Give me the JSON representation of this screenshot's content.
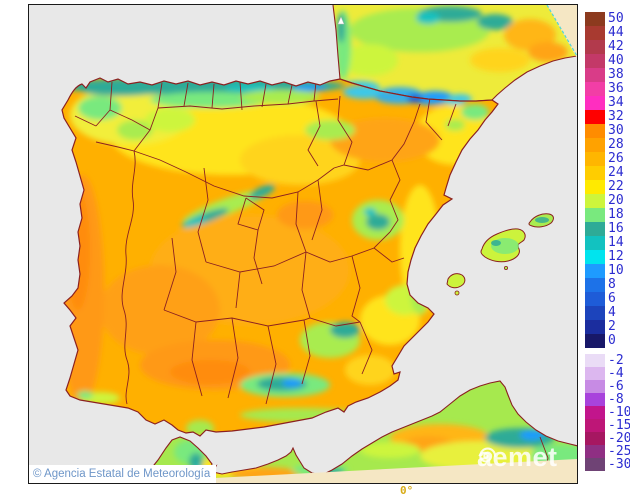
{
  "attribution": {
    "text": "© Agencia Estatal de Meteorología"
  },
  "watermark": {
    "text": "aemet"
  },
  "axis": {
    "meridian_label": "0°"
  },
  "colorbar": {
    "label_color": "#2B2BD0",
    "entries_upper": [
      {
        "temp": "50",
        "color": "#8C3A1E"
      },
      {
        "temp": "44",
        "color": "#A83A30"
      },
      {
        "temp": "42",
        "color": "#B23A4C"
      },
      {
        "temp": "40",
        "color": "#C33968"
      },
      {
        "temp": "38",
        "color": "#D93C88"
      },
      {
        "temp": "36",
        "color": "#F23EA6"
      },
      {
        "temp": "34",
        "color": "#FF2EC0"
      },
      {
        "temp": "32",
        "color": "#FF0000"
      },
      {
        "temp": "30",
        "color": "#FF8C00"
      },
      {
        "temp": "28",
        "color": "#FFA200"
      },
      {
        "temp": "26",
        "color": "#FFB600"
      },
      {
        "temp": "24",
        "color": "#FFCD00"
      },
      {
        "temp": "22",
        "color": "#FFEA00"
      },
      {
        "temp": "20",
        "color": "#CDF53C"
      },
      {
        "temp": "18",
        "color": "#79E97E"
      },
      {
        "temp": "16",
        "color": "#2EAB97"
      },
      {
        "temp": "14",
        "color": "#12C2C0"
      },
      {
        "temp": "12",
        "color": "#00E4EE"
      },
      {
        "temp": "10",
        "color": "#1E9BFF"
      },
      {
        "temp": "8",
        "color": "#1D72E8"
      },
      {
        "temp": "6",
        "color": "#1E5CD8"
      },
      {
        "temp": "4",
        "color": "#1C44BC"
      },
      {
        "temp": "2",
        "color": "#1B2D9E"
      },
      {
        "temp": "0",
        "color": "#181868"
      }
    ],
    "entries_lower": [
      {
        "temp": "-2",
        "color": "#EADCF6"
      },
      {
        "temp": "-4",
        "color": "#DCB7EF"
      },
      {
        "temp": "-6",
        "color": "#C78BE4"
      },
      {
        "temp": "-8",
        "color": "#A843DC"
      },
      {
        "temp": "-10",
        "color": "#C2158C"
      },
      {
        "temp": "-15",
        "color": "#BE1677"
      },
      {
        "temp": "-20",
        "color": "#A61761"
      },
      {
        "temp": "-25",
        "color": "#8F2F83"
      },
      {
        "temp": "-30",
        "color": "#6F4375"
      }
    ]
  },
  "map_colors": {
    "sea": "#E8E8E8",
    "no_data": "#F5E7C4",
    "coastline_border": "#8B2020",
    "frame": "#1A1A1A",
    "attribution_text": "#6E96C8",
    "meridian_text": "#D8AC18"
  }
}
